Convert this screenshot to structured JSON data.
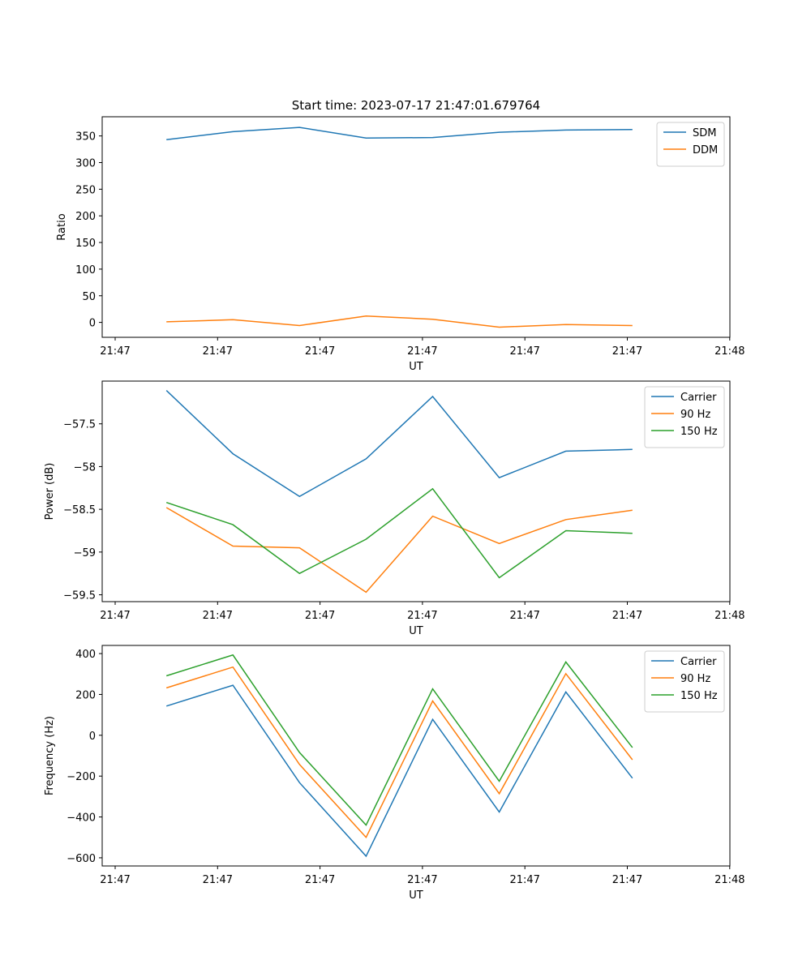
{
  "title": "Start time: 2023-07-17 21:47:01.679764",
  "chart_data": [
    {
      "type": "line",
      "title": "Start time: 2023-07-17 21:47:01.679764",
      "xlabel": "UT",
      "ylabel": "Ratio",
      "x_tick_labels": [
        "21:47",
        "21:47",
        "21:47",
        "21:47",
        "21:47",
        "21:47",
        "21:48"
      ],
      "xlim": [
        0,
        6
      ],
      "ylim": [
        -28,
        386
      ],
      "y_ticks": [
        0,
        50,
        100,
        150,
        200,
        250,
        300,
        350
      ],
      "legend_position": "top-right",
      "x": [
        0.5,
        1.15,
        1.8,
        2.45,
        3.1,
        3.75,
        4.4,
        5.05
      ],
      "series": [
        {
          "name": "SDM",
          "color": "#1f77b4",
          "values": [
            343,
            358,
            366,
            346,
            347,
            357,
            361,
            362
          ]
        },
        {
          "name": "DDM",
          "color": "#ff7f0e",
          "values": [
            1,
            5,
            -6,
            12,
            6,
            -9,
            -4,
            -6
          ]
        }
      ]
    },
    {
      "type": "line",
      "title": "",
      "xlabel": "UT",
      "ylabel": "Power (dB)",
      "x_tick_labels": [
        "21:47",
        "21:47",
        "21:47",
        "21:47",
        "21:47",
        "21:47",
        "21:48"
      ],
      "xlim": [
        0,
        6
      ],
      "ylim": [
        -59.58,
        -57.0
      ],
      "y_ticks": [
        -59.5,
        -59.0,
        -58.5,
        -58.0,
        -57.5
      ],
      "legend_position": "top-right",
      "x": [
        0.5,
        1.15,
        1.8,
        2.45,
        3.1,
        3.75,
        4.4,
        5.05
      ],
      "series": [
        {
          "name": "Carrier",
          "color": "#1f77b4",
          "values": [
            -57.11,
            -57.85,
            -58.35,
            -57.91,
            -57.18,
            -58.13,
            -57.82,
            -57.8
          ]
        },
        {
          "name": "90 Hz",
          "color": "#ff7f0e",
          "values": [
            -58.48,
            -58.93,
            -58.95,
            -59.47,
            -58.58,
            -58.9,
            -58.62,
            -58.51
          ]
        },
        {
          "name": "150 Hz",
          "color": "#2ca02c",
          "values": [
            -58.42,
            -58.68,
            -59.25,
            -58.85,
            -58.26,
            -59.3,
            -58.75,
            -58.78
          ]
        }
      ]
    },
    {
      "type": "line",
      "title": "",
      "xlabel": "UT",
      "ylabel": "Frequency (Hz)",
      "x_tick_labels": [
        "21:47",
        "21:47",
        "21:47",
        "21:47",
        "21:47",
        "21:47",
        "21:48"
      ],
      "xlim": [
        0,
        6
      ],
      "ylim": [
        -640,
        440
      ],
      "y_ticks": [
        -600,
        -400,
        -200,
        0,
        200,
        400
      ],
      "legend_position": "top-right",
      "x": [
        0.5,
        1.15,
        1.8,
        2.45,
        3.1,
        3.75,
        4.4,
        5.05
      ],
      "series": [
        {
          "name": "Carrier",
          "color": "#1f77b4",
          "values": [
            143,
            245,
            -232,
            -592,
            78,
            -376,
            212,
            -210
          ]
        },
        {
          "name": "90 Hz",
          "color": "#ff7f0e",
          "values": [
            232,
            334,
            -143,
            -500,
            168,
            -286,
            302,
            -120
          ]
        },
        {
          "name": "150 Hz",
          "color": "#2ca02c",
          "values": [
            291,
            393,
            -84,
            -440,
            227,
            -225,
            359,
            -60
          ]
        }
      ]
    }
  ]
}
